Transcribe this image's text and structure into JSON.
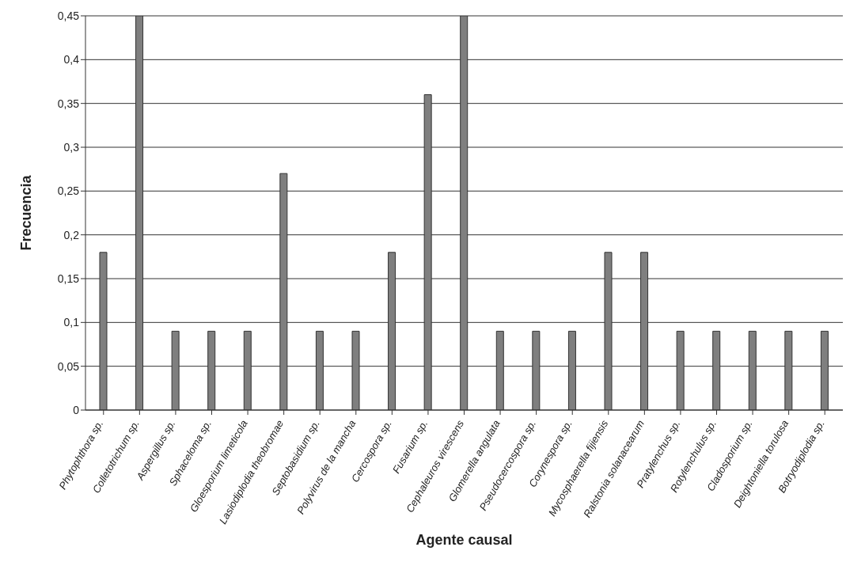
{
  "chart_data": {
    "type": "bar",
    "xlabel": "Agente causal",
    "ylabel": "Frecuencia",
    "categories": [
      "Phytophthora sp.",
      "Colletotrichum sp.",
      "Aspergillus sp.",
      "Sphaceloma sp.",
      "Gloesporium limeticola",
      "Lasiodiplodia theobromae",
      "Septobasidium sp.",
      "Polyvirus de la mancha",
      "Cercospora sp.",
      "Fusarium sp.",
      "Cephaleuros virescens",
      "Glomerella angulata",
      "Pseudocercospora sp.",
      "Corynespora sp.",
      "Mycosphaerella fijiensis",
      "Ralstonia solanacearum",
      "Pratylenchus sp.",
      "Rotylenchulus sp.",
      "Cladosporium sp.",
      "Deightoniella torulosa",
      "Botryodiplodia sp."
    ],
    "values": [
      0.18,
      0.45,
      0.09,
      0.09,
      0.09,
      0.27,
      0.09,
      0.09,
      0.18,
      0.36,
      0.45,
      0.09,
      0.09,
      0.09,
      0.18,
      0.18,
      0.09,
      0.09,
      0.09,
      0.09,
      0.09
    ],
    "color": "#7f7f7f",
    "ylim": [
      0,
      0.45
    ],
    "yticks": [
      0,
      {
        "value": 0.05,
        "label": "0,05"
      },
      {
        "value": 0.1,
        "label": "0,1"
      },
      {
        "value": 0.15,
        "label": "0,15"
      },
      {
        "value": 0.2,
        "label": "0,2"
      },
      {
        "value": 0.25,
        "label": "0,25"
      },
      {
        "value": 0.3,
        "label": "0,3"
      },
      {
        "value": 0.35,
        "label": "0,35"
      },
      {
        "value": 0.4,
        "label": "0,4"
      },
      {
        "value": 0.45,
        "label": "0,45"
      }
    ],
    "grid": "y"
  }
}
